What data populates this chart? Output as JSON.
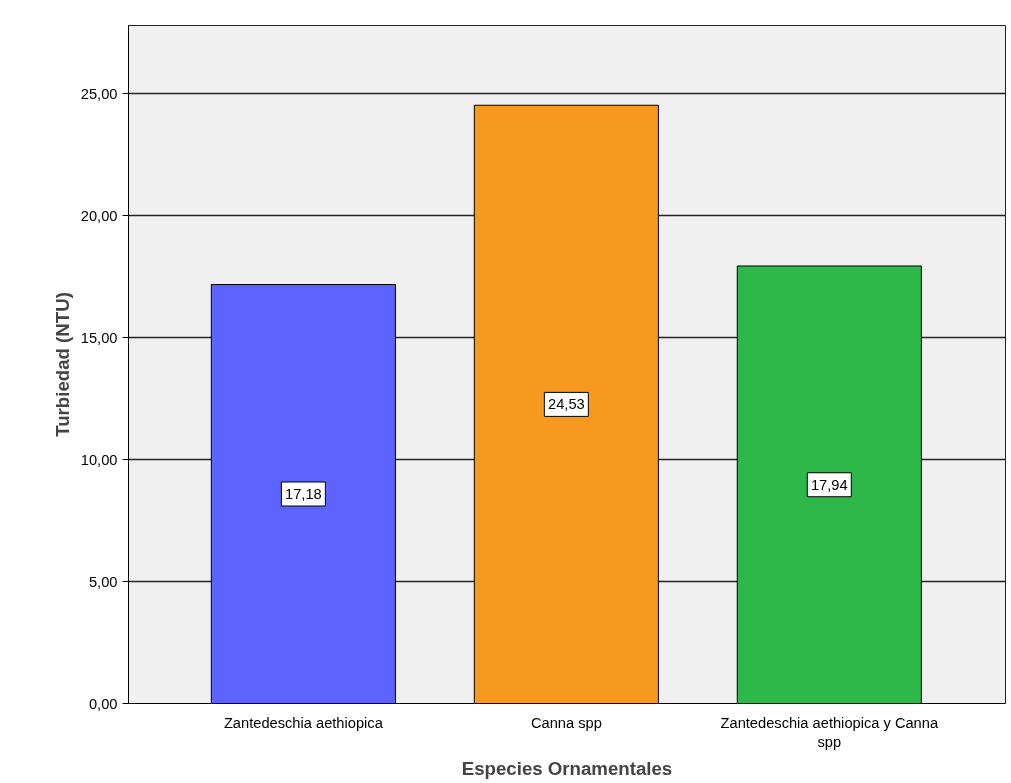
{
  "chart_data": {
    "type": "bar",
    "xlabel": "Especies Ornamentales",
    "ylabel": "Turbiedad (NTU)",
    "categories": [
      "Zantedeschia aethiopica",
      "Canna spp",
      "Zantedeschia aethiopica y Canna spp"
    ],
    "values": [
      17.18,
      24.53,
      17.94
    ],
    "colors": [
      "#5e62ff",
      "#f7991f",
      "#2fb84a"
    ],
    "value_labels": [
      "17,18",
      "24,53",
      "17,94"
    ],
    "ylim": [
      0,
      27.8
    ],
    "yticks": [
      {
        "value": 0,
        "label": "0,00"
      },
      {
        "value": 5,
        "label": "5,00"
      },
      {
        "value": 10,
        "label": "10,00"
      },
      {
        "value": 15,
        "label": "15,00"
      },
      {
        "value": 20,
        "label": "20,00"
      },
      {
        "value": 25,
        "label": "25,00"
      }
    ],
    "grid": "y"
  }
}
